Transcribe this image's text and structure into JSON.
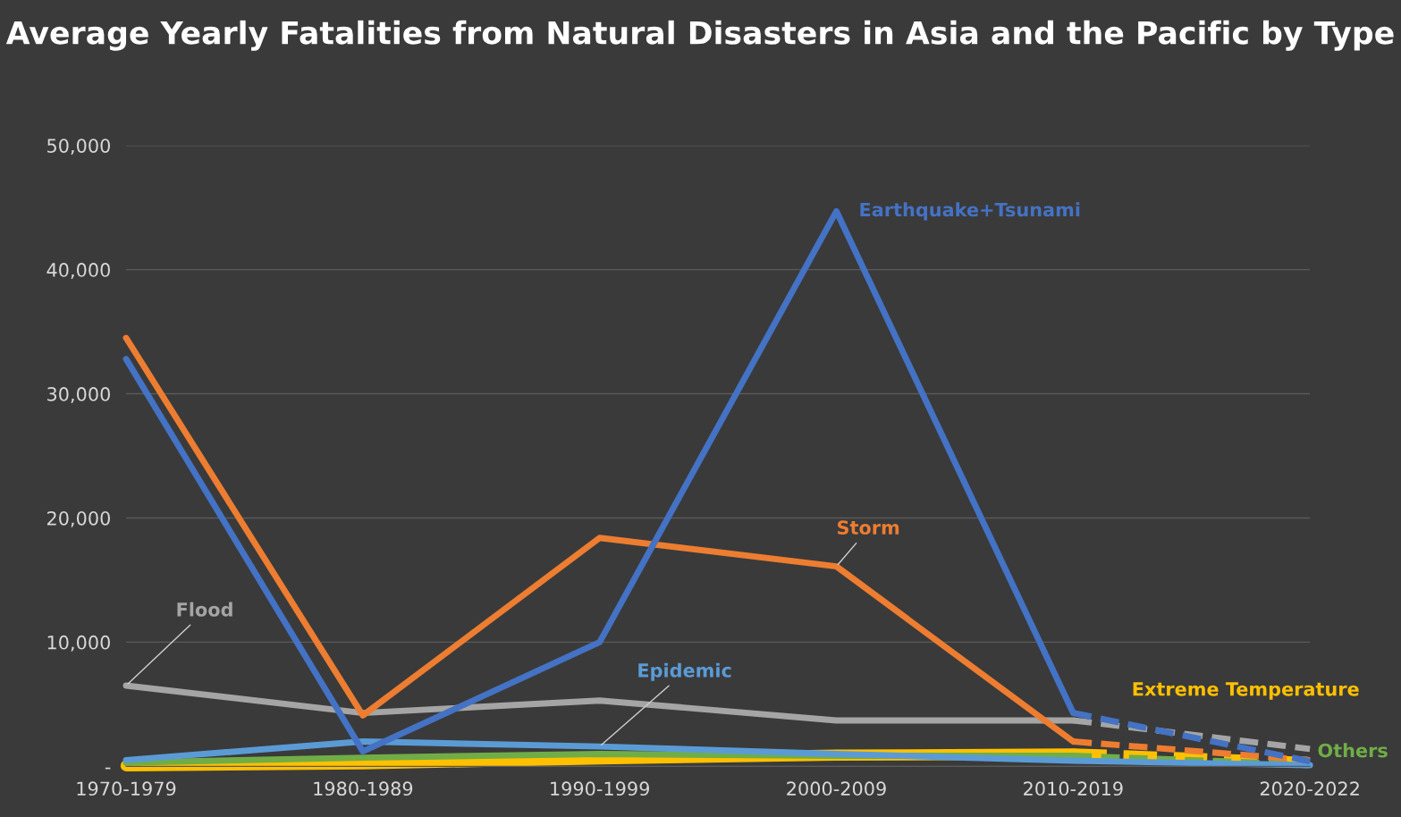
{
  "chart_data": {
    "type": "line",
    "title": "Average Yearly Fatalities from Natural Disasters in Asia and the Pacific by Type",
    "categories": [
      "1970-1979",
      "1980-1989",
      "1990-1999",
      "2000-2009",
      "2010-2019",
      "2020-2022"
    ],
    "ylim": [
      0,
      50000
    ],
    "yticks": [
      {
        "value": 0,
        "label": "-"
      },
      {
        "value": 10000,
        "label": "10,000"
      },
      {
        "value": 20000,
        "label": "20,000"
      },
      {
        "value": 30000,
        "label": "30,000"
      },
      {
        "value": 40000,
        "label": "40,000"
      },
      {
        "value": 50000,
        "label": "50,000"
      }
    ],
    "grid": "y",
    "legend": false,
    "marker": "none",
    "series": [
      {
        "name": "Extreme Temperature",
        "color": "#ffc000",
        "line_style": "solid",
        "values": [
          50,
          200,
          600,
          900,
          1000,
          null
        ]
      },
      {
        "color": "#ffc000",
        "line_style": "dashed",
        "values": [
          null,
          null,
          null,
          null,
          1000,
          300
        ]
      },
      {
        "name": "Others",
        "color": "#70ad47",
        "line_style": "solid",
        "values": [
          300,
          700,
          1000,
          850,
          850,
          null
        ]
      },
      {
        "color": "#70ad47",
        "line_style": "dashed",
        "values": [
          null,
          null,
          null,
          null,
          850,
          150
        ]
      },
      {
        "name": "Epidemic",
        "color": "#5b9bd5",
        "line_style": "solid",
        "values": [
          500,
          2000,
          1600,
          1000,
          450,
          100
        ]
      },
      {
        "name": "Flood",
        "color": "#a5a5a5",
        "line_style": "solid",
        "values": [
          6500,
          4300,
          5300,
          3700,
          3700,
          null
        ]
      },
      {
        "color": "#a5a5a5",
        "line_style": "dashed",
        "values": [
          null,
          null,
          null,
          null,
          3700,
          1400
        ]
      },
      {
        "name": "Storm",
        "color": "#ed7d31",
        "line_style": "solid",
        "values": [
          34500,
          4100,
          18400,
          16100,
          2000,
          null
        ]
      },
      {
        "color": "#ed7d31",
        "line_style": "dashed",
        "values": [
          null,
          null,
          null,
          null,
          2000,
          500
        ]
      },
      {
        "name": "Earthquake+Tsunami",
        "color": "#4472c4",
        "line_style": "solid",
        "values": [
          32800,
          1200,
          10000,
          44700,
          4300,
          null
        ]
      },
      {
        "color": "#4472c4",
        "line_style": "dashed",
        "values": [
          null,
          null,
          null,
          null,
          4300,
          400
        ]
      }
    ]
  }
}
